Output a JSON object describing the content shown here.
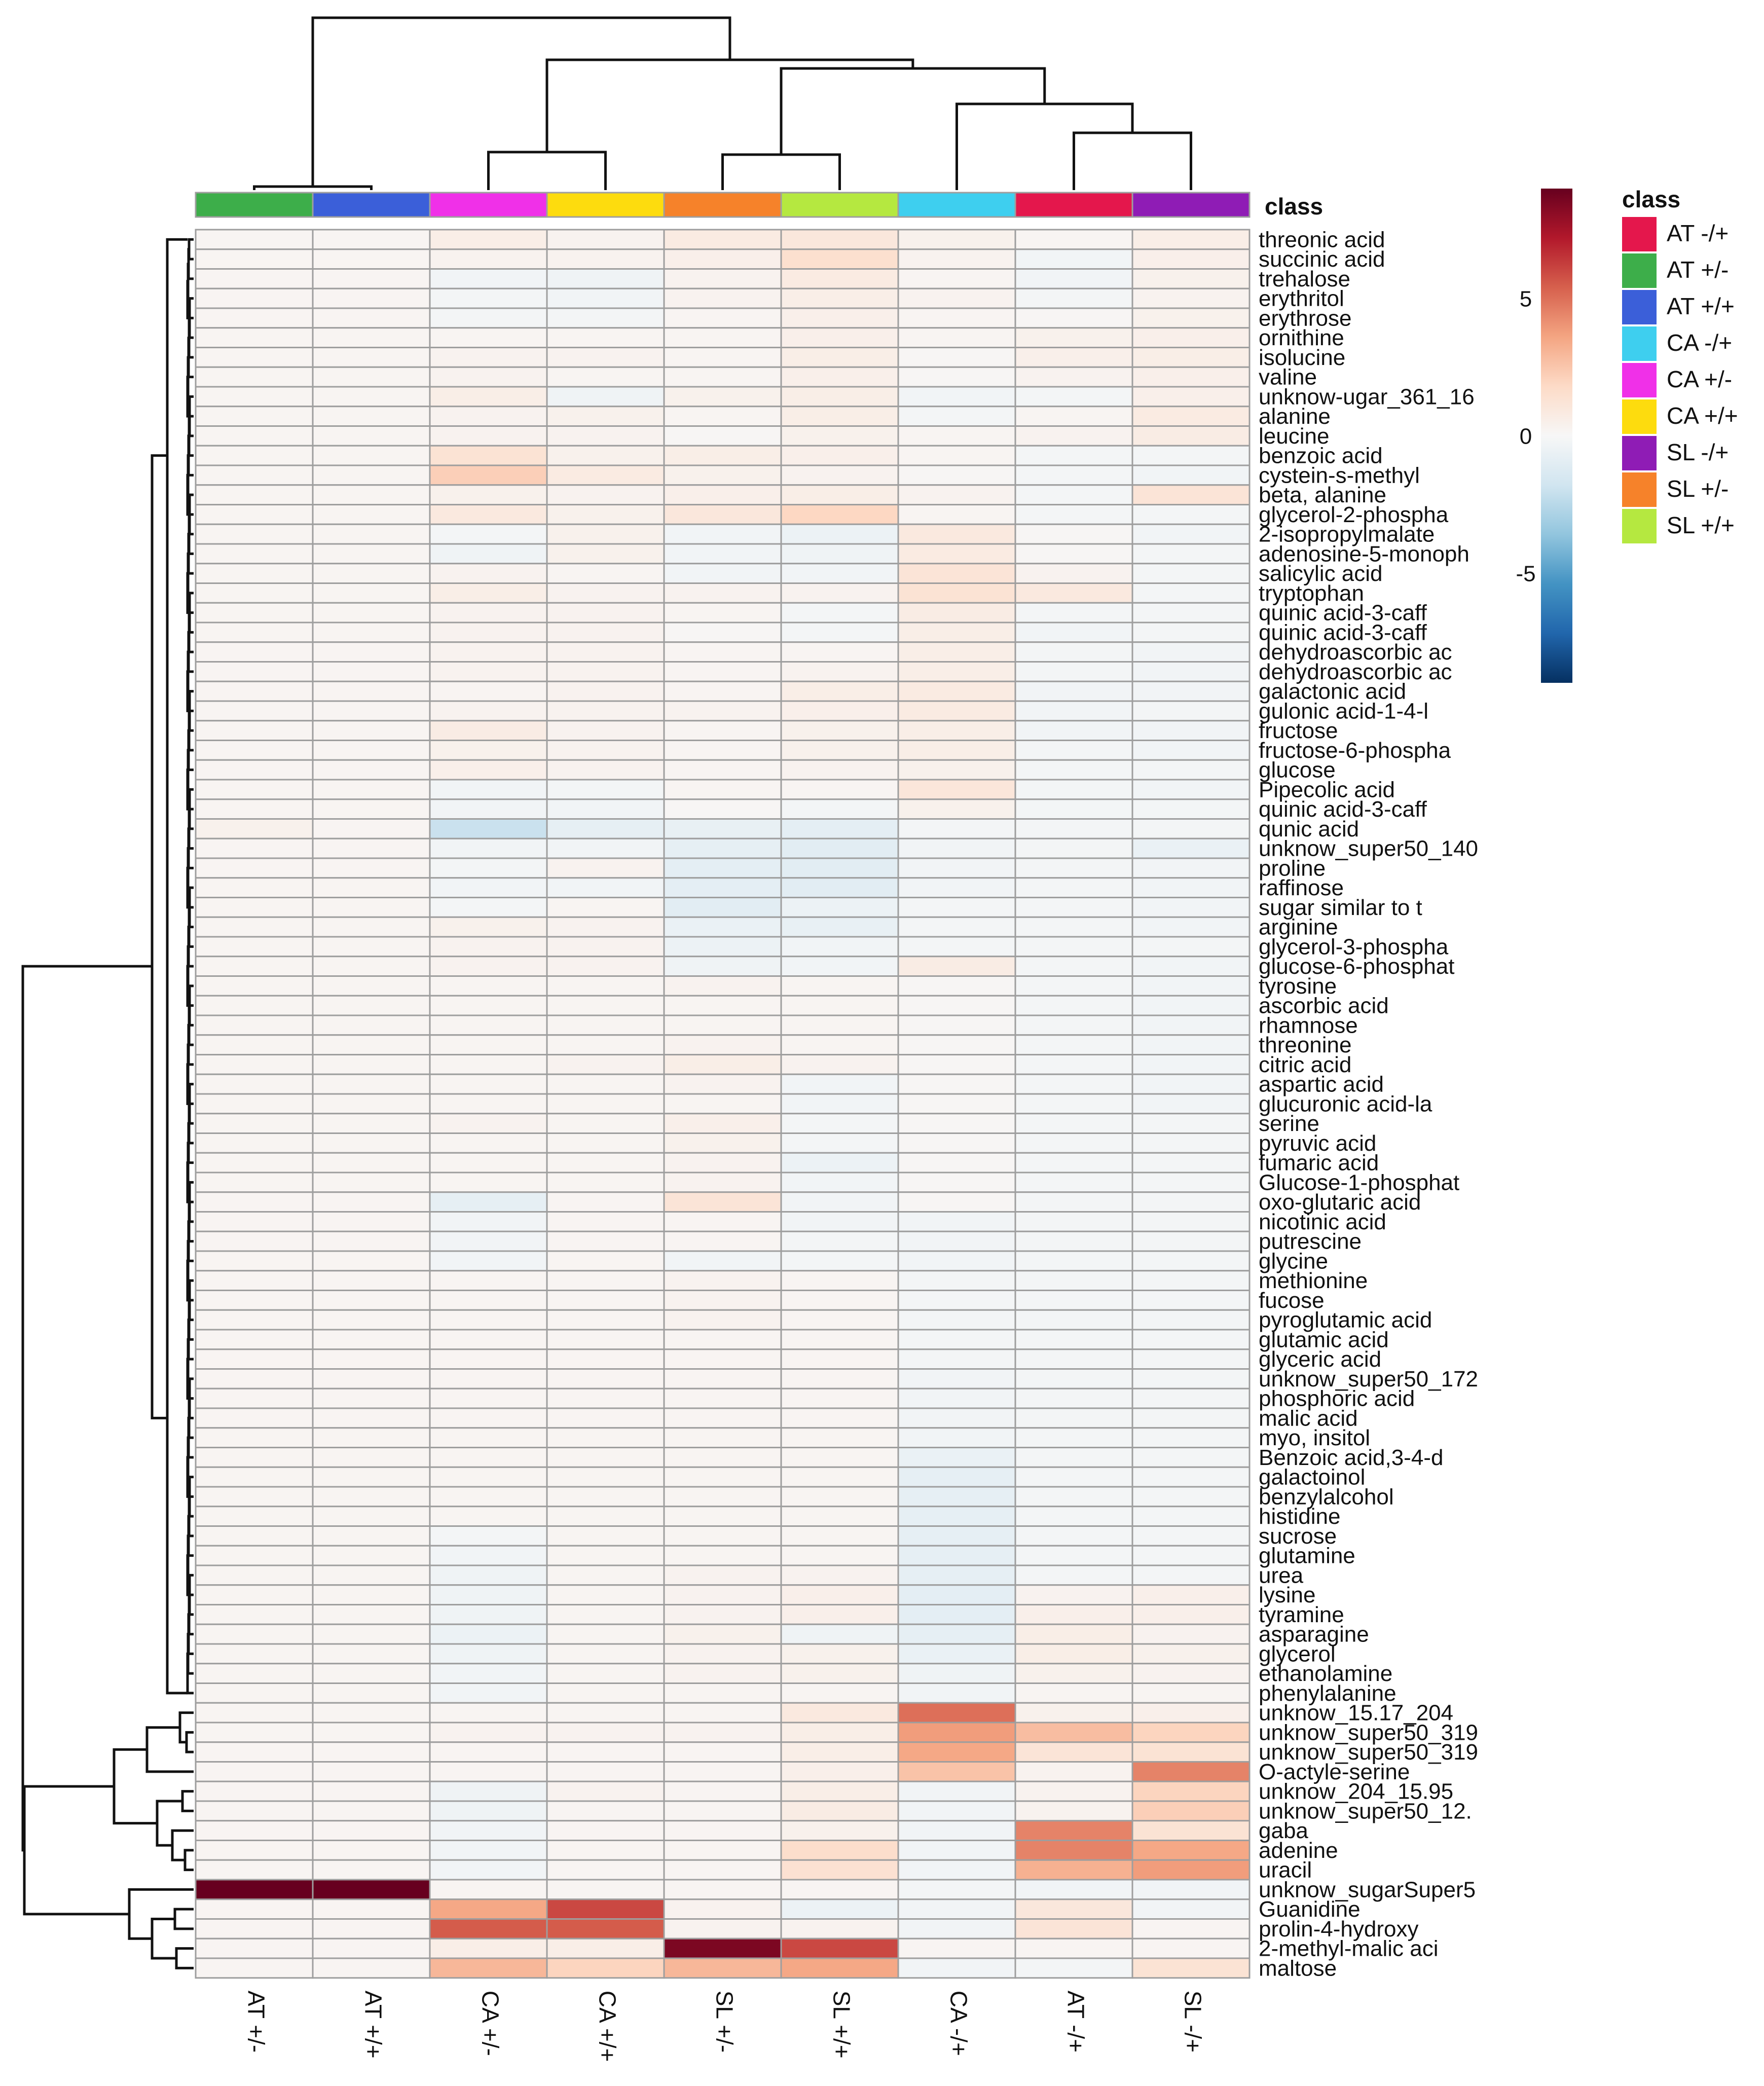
{
  "chart_data": {
    "type": "heatmap",
    "title": "",
    "columns": [
      "AT +/-",
      "AT +/+",
      "CA +/-",
      "CA +/+",
      "SL +/-",
      "SL +/+",
      "CA -/+",
      "AT -/+",
      "SL -/+"
    ],
    "rows": [
      "threonic acid",
      "succinic acid",
      "trehalose",
      "erythritol",
      "erythrose",
      "ornithine",
      "isolucine",
      "valine",
      "unknow-ugar_361_16",
      "alanine",
      "leucine",
      "benzoic acid",
      "cystein-s-methyl",
      "beta, alanine",
      "glycerol-2-phospha",
      "2-isopropylmalate",
      "adenosine-5-monoph",
      "salicylic acid",
      "tryptophan",
      "quinic acid-3-caff",
      "quinic acid-3-caff",
      "dehydroascorbic ac",
      "dehydroascorbic ac",
      "galactonic acid",
      "gulonic acid-1-4-l",
      "fructose",
      "fructose-6-phospha",
      "glucose",
      "Pipecolic acid",
      "quinic acid-3-caff",
      "qunic acid",
      "unknow_super50_140",
      "proline",
      "raffinose",
      "sugar similar to t",
      "arginine",
      "glycerol-3-phospha",
      "glucose-6-phosphat",
      "tyrosine",
      "ascorbic acid",
      "rhamnose",
      "threonine",
      "citric acid",
      "aspartic acid",
      "glucuronic acid-la",
      "serine",
      "pyruvic acid",
      "fumaric acid",
      "Glucose-1-phosphat",
      "oxo-glutaric acid",
      "nicotinic acid",
      "putrescine",
      "glycine",
      "methionine",
      "fucose",
      "pyroglutamic acid",
      "glutamic acid",
      "glyceric acid",
      "unknow_super50_172",
      "phosphoric acid",
      "malic acid",
      "myo, insitol",
      "Benzoic acid,3-4-d",
      "galactoinol",
      "benzylalcohol",
      "histidine",
      "sucrose",
      "glutamine",
      "urea",
      "lysine",
      "tyramine",
      "asparagine",
      "glycerol",
      "ethanolamine",
      "phenylalanine",
      "unknow_15.17_204",
      "unknow_super50_319",
      "unknow_super50_319",
      "O-actyle-serine",
      "unknow_204_15.95",
      "unknow_super50_12.",
      "gaba",
      "adenine",
      "uracil",
      "unknow_sugarSuper5",
      "Guanidine",
      "prolin-4-hydroxy",
      "2-methyl-malic aci",
      "maltose"
    ],
    "values": [
      [
        0.2,
        0.2,
        0.6,
        0.3,
        0.8,
        1.0,
        0.4,
        0.2,
        0.6
      ],
      [
        0.2,
        0.2,
        0.3,
        0.3,
        0.5,
        1.5,
        0.3,
        -0.3,
        0.5
      ],
      [
        0.2,
        0.2,
        -0.3,
        -0.4,
        0.3,
        0.8,
        0.2,
        -0.3,
        0.4
      ],
      [
        0.2,
        0.2,
        -0.2,
        -0.3,
        0.3,
        0.6,
        0.3,
        -0.2,
        0.3
      ],
      [
        0.2,
        0.2,
        -0.2,
        -0.2,
        0.2,
        0.5,
        0.2,
        0.1,
        0.4
      ],
      [
        0.2,
        0.2,
        0.2,
        0.2,
        0.2,
        0.5,
        0.2,
        0.4,
        0.5
      ],
      [
        0.2,
        0.2,
        0.3,
        0.3,
        0.2,
        0.6,
        0.1,
        0.5,
        0.6
      ],
      [
        0.2,
        0.2,
        0.3,
        0.2,
        0.2,
        0.5,
        0.1,
        0.3,
        0.5
      ],
      [
        0.2,
        0.2,
        0.6,
        -0.4,
        0.4,
        0.6,
        -0.3,
        -0.2,
        0.5
      ],
      [
        0.2,
        0.2,
        0.3,
        0.4,
        0.2,
        0.6,
        -0.2,
        0.2,
        0.8
      ],
      [
        0.2,
        0.2,
        0.3,
        0.3,
        0.1,
        0.4,
        0.2,
        0.3,
        0.7
      ],
      [
        0.2,
        0.2,
        1.3,
        0.4,
        0.6,
        0.5,
        0.2,
        -0.2,
        -0.2
      ],
      [
        0.2,
        0.2,
        2.2,
        0.8,
        0.4,
        0.3,
        0.1,
        -0.2,
        -0.3
      ],
      [
        0.2,
        0.2,
        0.4,
        0.3,
        0.5,
        0.6,
        0.3,
        -0.2,
        1.2
      ],
      [
        0.2,
        0.2,
        0.9,
        0.4,
        1.0,
        1.9,
        0.2,
        -0.2,
        -0.2
      ],
      [
        0.2,
        0.2,
        -0.2,
        0.4,
        -0.3,
        -0.5,
        0.9,
        0.1,
        -0.3
      ],
      [
        0.2,
        0.2,
        -0.4,
        0.4,
        -0.3,
        -0.4,
        0.8,
        0.1,
        -0.2
      ],
      [
        0.2,
        0.2,
        0.3,
        0.2,
        -0.3,
        -0.3,
        1.2,
        0.3,
        -0.2
      ],
      [
        0.2,
        0.2,
        0.6,
        0.3,
        0.3,
        0.3,
        1.3,
        0.9,
        -0.2
      ],
      [
        0.2,
        0.2,
        0.3,
        0.3,
        0.2,
        -0.2,
        0.7,
        -0.2,
        -0.2
      ],
      [
        0.2,
        0.2,
        0.3,
        0.3,
        0.1,
        -0.2,
        0.6,
        -0.3,
        -0.2
      ],
      [
        0.2,
        0.2,
        0.3,
        0.3,
        0.2,
        0.2,
        0.6,
        -0.2,
        -0.3
      ],
      [
        0.2,
        0.2,
        0.3,
        0.3,
        0.2,
        0.3,
        0.6,
        -0.2,
        -0.3
      ],
      [
        0.2,
        0.2,
        0.2,
        0.3,
        0.2,
        0.6,
        0.8,
        -0.3,
        -0.3
      ],
      [
        0.2,
        0.2,
        0.3,
        0.3,
        0.3,
        0.5,
        0.8,
        -0.3,
        -0.2
      ],
      [
        0.2,
        0.2,
        0.7,
        0.3,
        0.2,
        0.4,
        0.6,
        -0.3,
        -0.3
      ],
      [
        0.2,
        0.2,
        0.4,
        0.3,
        0.2,
        0.4,
        0.6,
        -0.2,
        -0.3
      ],
      [
        0.2,
        0.2,
        0.5,
        0.3,
        0.2,
        0.3,
        0.4,
        -0.2,
        -0.2
      ],
      [
        0.2,
        0.2,
        -0.3,
        -0.2,
        0.2,
        0.2,
        1.1,
        -0.2,
        -0.3
      ],
      [
        0.2,
        0.2,
        -0.3,
        -0.3,
        0.1,
        -0.2,
        0.4,
        -0.2,
        -0.2
      ],
      [
        0.4,
        0.2,
        -2.0,
        -0.8,
        -0.7,
        -0.9,
        -0.2,
        -0.2,
        -0.2
      ],
      [
        0.2,
        0.2,
        -0.3,
        -0.3,
        -0.8,
        -1.0,
        -0.3,
        -0.2,
        -0.6
      ],
      [
        0.2,
        0.2,
        -0.2,
        0.3,
        -0.9,
        -1.0,
        -0.3,
        -0.2,
        -0.3
      ],
      [
        0.2,
        0.2,
        -0.3,
        -0.3,
        -0.9,
        -1.0,
        -0.3,
        -0.2,
        -0.3
      ],
      [
        0.2,
        0.2,
        -0.2,
        0.2,
        -1.0,
        -0.5,
        -0.2,
        -0.2,
        -0.3
      ],
      [
        0.2,
        0.2,
        0.4,
        0.3,
        -0.6,
        -0.7,
        -0.2,
        -0.2,
        -0.3
      ],
      [
        0.2,
        0.2,
        0.3,
        0.3,
        -0.5,
        -0.3,
        -0.2,
        -0.2,
        -0.2
      ],
      [
        0.2,
        0.2,
        0.3,
        0.3,
        -0.4,
        -0.3,
        0.7,
        -0.2,
        -0.3
      ],
      [
        0.2,
        0.2,
        0.2,
        0.2,
        0.3,
        0.2,
        0.1,
        -0.2,
        -0.3
      ],
      [
        0.2,
        0.2,
        0.2,
        0.2,
        0.2,
        0.2,
        0.1,
        -0.2,
        -0.3
      ],
      [
        0.2,
        0.2,
        0.2,
        0.2,
        0.2,
        0.2,
        0.1,
        -0.2,
        -0.3
      ],
      [
        0.2,
        0.2,
        0.2,
        0.2,
        0.3,
        0.2,
        0.1,
        -0.2,
        -0.3
      ],
      [
        0.2,
        0.2,
        0.2,
        0.3,
        0.6,
        0.3,
        0.1,
        -0.2,
        -0.3
      ],
      [
        0.2,
        0.2,
        0.2,
        0.2,
        0.3,
        -0.3,
        0.1,
        -0.2,
        -0.3
      ],
      [
        0.2,
        0.2,
        0.2,
        0.2,
        0.2,
        -0.3,
        0.1,
        -0.2,
        -0.3
      ],
      [
        0.2,
        0.2,
        0.3,
        0.2,
        0.5,
        -0.2,
        0.1,
        -0.2,
        -0.2
      ],
      [
        0.2,
        0.2,
        0.2,
        0.2,
        0.4,
        -0.2,
        0.1,
        -0.2,
        -0.2
      ],
      [
        0.2,
        0.2,
        0.2,
        0.2,
        0.3,
        -0.5,
        0.1,
        -0.2,
        -0.2
      ],
      [
        0.2,
        0.2,
        0.2,
        0.2,
        0.3,
        -0.3,
        0.1,
        -0.2,
        -0.2
      ],
      [
        0.2,
        0.2,
        -0.8,
        0.2,
        1.2,
        -0.3,
        0.1,
        -0.2,
        -0.2
      ],
      [
        0.2,
        0.2,
        -0.3,
        0.2,
        0.2,
        -0.3,
        -0.3,
        -0.2,
        -0.2
      ],
      [
        0.2,
        0.2,
        -0.3,
        0.2,
        0.2,
        -0.2,
        -0.3,
        -0.2,
        -0.2
      ],
      [
        0.2,
        0.2,
        -0.3,
        0.2,
        -0.3,
        -0.2,
        -0.3,
        -0.2,
        -0.2
      ],
      [
        0.2,
        0.2,
        0.2,
        0.2,
        0.3,
        0.2,
        -0.2,
        -0.2,
        -0.2
      ],
      [
        0.2,
        0.2,
        0.2,
        0.2,
        0.3,
        0.2,
        -0.2,
        -0.2,
        -0.2
      ],
      [
        0.2,
        0.2,
        0.2,
        0.2,
        0.3,
        0.2,
        -0.2,
        -0.2,
        -0.2
      ],
      [
        0.2,
        0.2,
        0.2,
        0.2,
        0.2,
        0.2,
        -0.2,
        -0.2,
        -0.2
      ],
      [
        0.2,
        0.2,
        0.2,
        0.2,
        0.2,
        0.2,
        -0.2,
        -0.2,
        -0.2
      ],
      [
        0.2,
        0.2,
        0.2,
        0.2,
        0.2,
        0.2,
        -0.3,
        -0.2,
        -0.2
      ],
      [
        0.2,
        0.2,
        0.2,
        0.2,
        0.2,
        0.2,
        -0.3,
        -0.2,
        -0.2
      ],
      [
        0.2,
        0.2,
        0.2,
        0.2,
        0.2,
        0.2,
        -0.3,
        -0.2,
        -0.2
      ],
      [
        0.2,
        0.2,
        0.2,
        0.2,
        0.2,
        0.2,
        -0.3,
        -0.2,
        -0.2
      ],
      [
        0.2,
        0.2,
        0.2,
        0.2,
        0.2,
        0.2,
        -0.6,
        -0.2,
        -0.2
      ],
      [
        0.2,
        0.2,
        0.2,
        0.2,
        0.2,
        0.2,
        -0.8,
        -0.2,
        -0.2
      ],
      [
        0.2,
        0.2,
        0.2,
        0.2,
        0.2,
        0.2,
        -0.8,
        -0.2,
        -0.2
      ],
      [
        0.2,
        0.2,
        0.2,
        0.2,
        0.2,
        0.2,
        -0.8,
        -0.2,
        -0.2
      ],
      [
        0.2,
        0.2,
        -0.2,
        0.2,
        0.2,
        0.2,
        -0.8,
        -0.2,
        -0.2
      ],
      [
        0.2,
        0.2,
        -0.3,
        0.2,
        0.2,
        0.2,
        -0.8,
        -0.2,
        -0.2
      ],
      [
        0.2,
        0.2,
        -0.4,
        0.2,
        0.3,
        0.3,
        -0.8,
        -0.2,
        -0.2
      ],
      [
        0.2,
        0.2,
        -0.4,
        0.2,
        0.3,
        0.5,
        -0.9,
        0.3,
        0.5
      ],
      [
        0.2,
        0.2,
        -0.4,
        0.2,
        0.3,
        0.5,
        -0.9,
        0.5,
        0.5
      ],
      [
        0.2,
        0.2,
        -0.5,
        0.2,
        0.4,
        -0.4,
        -0.8,
        0.6,
        0.3
      ],
      [
        0.2,
        0.2,
        -0.4,
        0.2,
        0.3,
        0.4,
        -0.6,
        0.6,
        0.4
      ],
      [
        0.2,
        0.2,
        -0.3,
        0.2,
        0.3,
        0.4,
        -0.4,
        0.4,
        0.3
      ],
      [
        0.2,
        0.2,
        -0.3,
        0.2,
        0.2,
        0.2,
        -0.3,
        0.2,
        0.2
      ],
      [
        0.2,
        0.2,
        0.2,
        0.2,
        0.2,
        0.9,
        5.0,
        0.4,
        0.5
      ],
      [
        0.2,
        0.2,
        0.3,
        0.3,
        0.3,
        0.6,
        3.8,
        2.8,
        2.0
      ],
      [
        0.2,
        0.2,
        0.2,
        0.2,
        0.2,
        0.6,
        3.5,
        1.2,
        1.3
      ],
      [
        0.2,
        0.2,
        0.2,
        0.2,
        0.2,
        0.5,
        2.6,
        0.3,
        4.5
      ],
      [
        0.2,
        0.2,
        -0.4,
        0.3,
        0.2,
        0.6,
        -0.3,
        0.3,
        2.0
      ],
      [
        0.2,
        0.2,
        -0.4,
        0.2,
        0.2,
        0.7,
        -0.3,
        0.3,
        2.2
      ],
      [
        0.2,
        0.2,
        -0.3,
        0.2,
        0.2,
        0.4,
        -0.3,
        4.5,
        1.3
      ],
      [
        0.2,
        0.2,
        -0.3,
        0.2,
        0.2,
        1.6,
        -0.3,
        4.5,
        3.5
      ],
      [
        0.2,
        0.2,
        -0.3,
        0.2,
        0.2,
        1.4,
        -0.3,
        3.2,
        3.8
      ],
      [
        9.0,
        9.0,
        0.2,
        0.2,
        0.2,
        0.2,
        -0.2,
        -0.3,
        -0.3
      ],
      [
        0.2,
        0.2,
        3.5,
        6.0,
        0.3,
        -0.5,
        -0.3,
        1.0,
        -0.3
      ],
      [
        0.2,
        0.2,
        5.5,
        5.5,
        0.3,
        0.3,
        -0.3,
        1.2,
        0.2
      ],
      [
        0.2,
        0.2,
        0.6,
        0.6,
        8.5,
        6.0,
        0.2,
        0.2,
        0.2
      ],
      [
        0.2,
        0.2,
        3.0,
        2.0,
        3.0,
        3.5,
        -0.3,
        -0.2,
        1.3
      ]
    ],
    "column_classes": [
      "AT +/-",
      "AT +/+",
      "CA +/-",
      "CA +/+",
      "SL +/-",
      "SL +/+",
      "CA -/+",
      "AT -/+",
      "SL -/+"
    ],
    "annotation_label": "class",
    "legend": {
      "title": "class",
      "entries": [
        {
          "label": "AT -/+",
          "color": "#E4174C"
        },
        {
          "label": "AT +/-",
          "color": "#3DAE4A"
        },
        {
          "label": "AT +/+",
          "color": "#3B5FD9"
        },
        {
          "label": "CA -/+",
          "color": "#3ECFEF"
        },
        {
          "label": "CA +/-",
          "color": "#F030E8"
        },
        {
          "label": "CA +/+",
          "color": "#FDDC0E"
        },
        {
          "label": "SL -/+",
          "color": "#8F1CB5"
        },
        {
          "label": "SL +/-",
          "color": "#F6822A"
        },
        {
          "label": "SL +/+",
          "color": "#B5E840"
        }
      ]
    },
    "colorbar": {
      "ticks": [
        5,
        0,
        -5
      ],
      "tick_labels": [
        "5",
        "0",
        "-5"
      ],
      "range": [
        -9,
        9
      ],
      "stops": [
        "#053061",
        "#2166AC",
        "#4393C3",
        "#92C5DE",
        "#D1E5F0",
        "#F7F7F7",
        "#FDDBC7",
        "#F4A582",
        "#D6604D",
        "#B2182B",
        "#67001F"
      ]
    },
    "cell_border_color": "#9E9E9E"
  }
}
